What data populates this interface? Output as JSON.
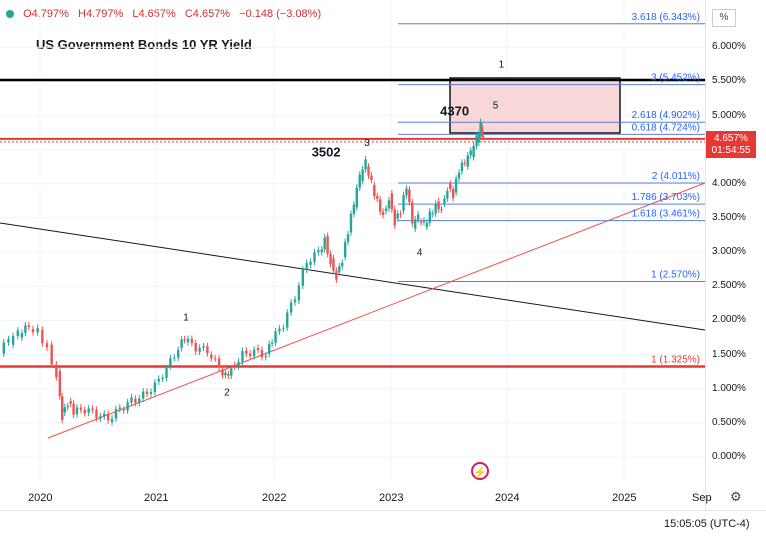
{
  "header": {
    "open": "O4.797%",
    "high": "H4.797%",
    "low": "L4.657%",
    "close": "C4.657%",
    "change": "−0.148 (−3.08%)",
    "pct_button": "%"
  },
  "title": "US Government Bonds 10 YR Yield",
  "price_tag": {
    "value": "4.657%",
    "countdown": "01:54:55"
  },
  "time": "15:05:05 (UTC-4)",
  "colors": {
    "up": "#26a69a",
    "down": "#ef5350",
    "fib": "#2962ff",
    "box_fill": "#f8d7d9",
    "red_line": "#e53935"
  },
  "chart_data": {
    "type": "candlestick",
    "title": "US Government Bonds 10 YR Yield",
    "y_axis": {
      "ticks": [
        "6.000%",
        "5.500%",
        "5.000%",
        "4.500%",
        "4.000%",
        "3.500%",
        "3.000%",
        "2.500%",
        "2.000%",
        "1.500%",
        "1.000%",
        "0.500%",
        "0.000%"
      ],
      "range": [
        -0.1,
        6.55
      ]
    },
    "x_axis": {
      "ticks": [
        "2020",
        "2021",
        "2022",
        "2023",
        "2024",
        "2025",
        "Sep"
      ]
    },
    "series_path": [
      [
        2019.67,
        1.55
      ],
      [
        2019.75,
        1.7
      ],
      [
        2019.83,
        1.8
      ],
      [
        2019.92,
        1.9
      ],
      [
        2020.0,
        1.85
      ],
      [
        2020.08,
        1.6
      ],
      [
        2020.16,
        1.2
      ],
      [
        2020.2,
        0.6
      ],
      [
        2020.25,
        0.8
      ],
      [
        2020.3,
        0.65
      ],
      [
        2020.4,
        0.7
      ],
      [
        2020.5,
        0.62
      ],
      [
        2020.6,
        0.55
      ],
      [
        2020.7,
        0.7
      ],
      [
        2020.8,
        0.82
      ],
      [
        2020.9,
        0.9
      ],
      [
        2021.0,
        1.05
      ],
      [
        2021.1,
        1.3
      ],
      [
        2021.2,
        1.6
      ],
      [
        2021.25,
        1.72
      ],
      [
        2021.35,
        1.6
      ],
      [
        2021.45,
        1.55
      ],
      [
        2021.55,
        1.3
      ],
      [
        2021.6,
        1.2
      ],
      [
        2021.65,
        1.3
      ],
      [
        2021.75,
        1.5
      ],
      [
        2021.85,
        1.55
      ],
      [
        2021.95,
        1.5
      ],
      [
        2022.0,
        1.7
      ],
      [
        2022.1,
        1.95
      ],
      [
        2022.2,
        2.35
      ],
      [
        2022.3,
        2.85
      ],
      [
        2022.4,
        3.0
      ],
      [
        2022.45,
        3.2
      ],
      [
        2022.5,
        2.85
      ],
      [
        2022.55,
        2.65
      ],
      [
        2022.6,
        2.9
      ],
      [
        2022.65,
        3.3
      ],
      [
        2022.7,
        3.7
      ],
      [
        2022.75,
        4.1
      ],
      [
        2022.8,
        4.3
      ],
      [
        2022.85,
        4.0
      ],
      [
        2022.9,
        3.75
      ],
      [
        2022.95,
        3.55
      ],
      [
        2023.0,
        3.8
      ],
      [
        2023.05,
        3.45
      ],
      [
        2023.1,
        3.6
      ],
      [
        2023.15,
        3.95
      ],
      [
        2023.2,
        3.4
      ],
      [
        2023.25,
        3.5
      ],
      [
        2023.3,
        3.4
      ],
      [
        2023.35,
        3.55
      ],
      [
        2023.4,
        3.7
      ],
      [
        2023.45,
        3.65
      ],
      [
        2023.5,
        3.95
      ],
      [
        2023.55,
        3.85
      ],
      [
        2023.6,
        4.2
      ],
      [
        2023.65,
        4.3
      ],
      [
        2023.7,
        4.45
      ],
      [
        2023.75,
        4.65
      ],
      [
        2023.78,
        4.85
      ],
      [
        2023.8,
        4.66
      ]
    ],
    "fib_levels": [
      {
        "label": "3.618 (6.343%)",
        "value": 6.343
      },
      {
        "label": "3 (5.452%)",
        "value": 5.452
      },
      {
        "label": "2.618 (4.902%)",
        "value": 4.902
      },
      {
        "label": "0.618 (4.724%)",
        "value": 4.724
      },
      {
        "label": "2 (4.011%)",
        "value": 4.011
      },
      {
        "label": "1.786 (3.703%)",
        "value": 3.703
      },
      {
        "label": "1.618 (3.461%)",
        "value": 3.461
      },
      {
        "label": "1 (2.570%)",
        "value": 2.57
      },
      {
        "label": "1 (1.325%)",
        "value": 1.325
      }
    ],
    "horizontal_lines": [
      {
        "value": 5.52,
        "color": "#000000"
      },
      {
        "value": 4.657,
        "color": "#e53935"
      },
      {
        "value": 1.325,
        "color": "#e53935"
      }
    ],
    "annotations": [
      {
        "text": "3502",
        "x": 2022.45,
        "y": 4.4,
        "bold": true
      },
      {
        "text": "4370",
        "x": 2023.55,
        "y": 5.0,
        "bold": true
      },
      {
        "text": "1",
        "x": 2021.25,
        "y": 2.0
      },
      {
        "text": "2",
        "x": 2021.6,
        "y": 0.9
      },
      {
        "text": "3",
        "x": 2022.8,
        "y": 4.55
      },
      {
        "text": "4",
        "x": 2023.25,
        "y": 2.95
      },
      {
        "text": "5",
        "x": 2023.9,
        "y": 5.1
      },
      {
        "text": "1",
        "x": 2023.95,
        "y": 5.7
      }
    ]
  }
}
